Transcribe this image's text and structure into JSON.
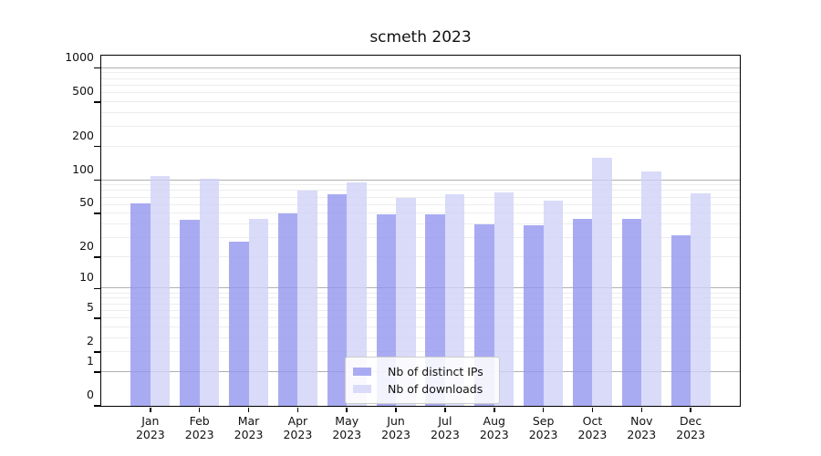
{
  "title": "scmeth 2023",
  "legend": {
    "position": "lower center",
    "items": [
      {
        "label": "Nb of distinct IPs",
        "color": "#a9abf2"
      },
      {
        "label": "Nb of downloads",
        "color": "#d9dbf8"
      }
    ]
  },
  "chart_data": {
    "type": "bar",
    "title": "scmeth 2023",
    "categories": [
      "Jan",
      "Feb",
      "Mar",
      "Apr",
      "May",
      "Jun",
      "Jul",
      "Aug",
      "Sep",
      "Oct",
      "Nov",
      "Dec"
    ],
    "category_year": "2023",
    "series": [
      {
        "name": "Nb of distinct IPs",
        "color": "#a9abf2",
        "bar_fill_rgba": "rgba(148,150,239,0.8)",
        "values": [
          62,
          44,
          28,
          50,
          75,
          49,
          49,
          40,
          39,
          45,
          45,
          32
        ]
      },
      {
        "name": "Nb of downloads",
        "color": "#d9dbf8",
        "bar_fill_rgba": "rgba(208,210,246,0.8)",
        "values": [
          110,
          104,
          45,
          80,
          95,
          70,
          75,
          78,
          65,
          160,
          120,
          76
        ]
      }
    ],
    "xlabel": "",
    "ylabel": "",
    "y_axis": {
      "scale": "symlog: position proportional to ln(1+v)",
      "axis_top_value": 1290,
      "ticks": [
        0,
        1,
        2,
        5,
        10,
        20,
        50,
        100,
        200,
        500,
        1000
      ],
      "major_gridlines": [
        1,
        10,
        100,
        1000
      ],
      "minor_gridlines": [
        2,
        3,
        4,
        5,
        6,
        7,
        8,
        9,
        20,
        30,
        40,
        50,
        60,
        70,
        80,
        90,
        200,
        300,
        400,
        500,
        600,
        700,
        800,
        900
      ]
    },
    "grid": true,
    "legend_position": "lower center"
  },
  "colors": {
    "major_grid": "#b0b0b0",
    "minor_grid": "#ededed",
    "spine": "#000000",
    "background": "#ffffff"
  }
}
